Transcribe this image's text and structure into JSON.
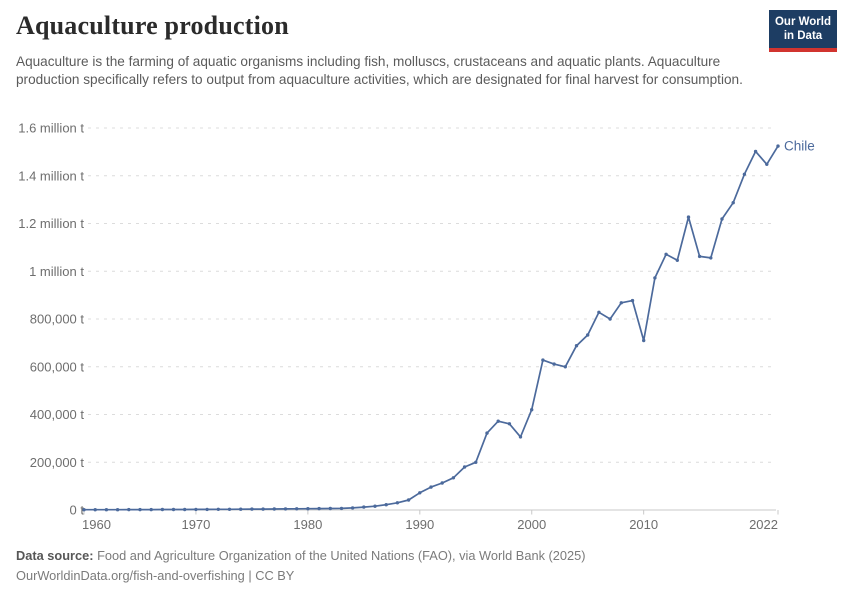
{
  "header": {
    "title": "Aquaculture production",
    "subtitle": "Aquaculture is the farming of aquatic organisms including fish, molluscs, crustaceans and aquatic plants. Aquaculture production specifically refers to output from aquaculture activities, which are designated for final harvest for consumption.",
    "logo": {
      "line1": "Our World",
      "line2": "in Data"
    }
  },
  "footer": {
    "source_label": "Data source:",
    "source_text": " Food and Agriculture Organization of the United Nations (FAO), via World Bank (2025)",
    "license_line": "OurWorldinData.org/fish-and-overfishing | CC BY"
  },
  "colors": {
    "line": "#4c6a9c",
    "grid": "#dcdcdc",
    "axis": "#c8c8c8",
    "tick_text": "#6e6e6e",
    "logo_bg": "#1d3d63",
    "logo_underline": "#d1342f"
  },
  "chart_data": {
    "type": "line",
    "title": "Aquaculture production",
    "entity": "Chile",
    "unit": "t",
    "xlim": [
      1960,
      2022
    ],
    "ylim": [
      0,
      1600000
    ],
    "grid": "dashed-horizontal",
    "legend_position": "end-of-line-label",
    "xticks": [
      1960,
      1970,
      1980,
      1990,
      2000,
      2010,
      2022
    ],
    "yticks": [
      {
        "value": 0,
        "label": "0 t"
      },
      {
        "value": 200000,
        "label": "200,000 t"
      },
      {
        "value": 400000,
        "label": "400,000 t"
      },
      {
        "value": 600000,
        "label": "600,000 t"
      },
      {
        "value": 800000,
        "label": "800,000 t"
      },
      {
        "value": 1000000,
        "label": "1 million t"
      },
      {
        "value": 1200000,
        "label": "1.2 million t"
      },
      {
        "value": 1400000,
        "label": "1.4 million t"
      },
      {
        "value": 1600000,
        "label": "1.6 million t"
      }
    ],
    "x": [
      1960,
      1961,
      1962,
      1963,
      1964,
      1965,
      1966,
      1967,
      1968,
      1969,
      1970,
      1971,
      1972,
      1973,
      1974,
      1975,
      1976,
      1977,
      1978,
      1979,
      1980,
      1981,
      1982,
      1983,
      1984,
      1985,
      1986,
      1987,
      1988,
      1989,
      1990,
      1991,
      1992,
      1993,
      1994,
      1995,
      1996,
      1997,
      1998,
      1999,
      2000,
      2001,
      2002,
      2003,
      2004,
      2005,
      2006,
      2007,
      2008,
      2009,
      2010,
      2011,
      2012,
      2013,
      2014,
      2015,
      2016,
      2017,
      2018,
      2019,
      2020,
      2021,
      2022
    ],
    "values": [
      1100,
      1200,
      1300,
      1400,
      1500,
      1700,
      1800,
      2000,
      2100,
      2300,
      2500,
      2700,
      2900,
      3100,
      3400,
      3600,
      3900,
      4200,
      4500,
      4900,
      5300,
      5700,
      6100,
      6600,
      9000,
      12000,
      16000,
      22000,
      30000,
      42000,
      72000,
      96000,
      113000,
      135000,
      180000,
      200000,
      322000,
      372000,
      361000,
      306000,
      420000,
      628000,
      611000,
      600000,
      688000,
      733000,
      828000,
      800000,
      868000,
      877000,
      710000,
      972000,
      1071000,
      1046000,
      1227000,
      1062000,
      1056000,
      1219000,
      1287000,
      1406000,
      1502000,
      1448000,
      1524000
    ],
    "line_color": "#4c6a9c"
  }
}
